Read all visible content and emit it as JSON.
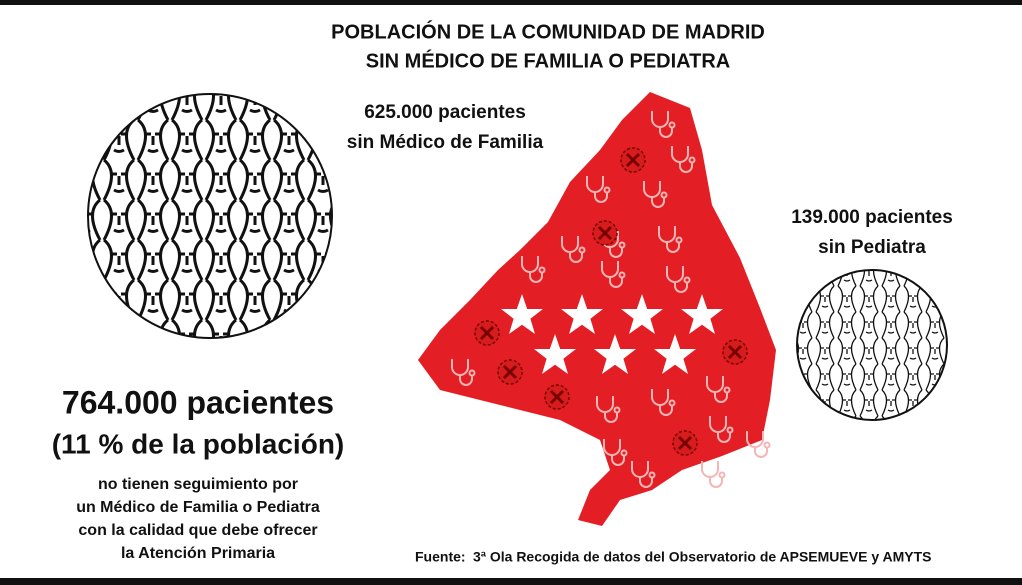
{
  "header": {
    "title_lines": [
      "POBLACIÓN DE LA COMUNIDAD DE MADRID",
      "SIN MÉDICO DE FAMILIA O PEDIATRA"
    ]
  },
  "family_doctor": {
    "count": "625.000 pacientes",
    "label": "sin Médico de Familia"
  },
  "pediatrician": {
    "count": "139.000 pacientes",
    "label": "sin Pediatra"
  },
  "total": {
    "count": "764.000 pacientes",
    "share": "(11 % de la población)",
    "description": [
      "no tienen seguimiento por",
      "un Médico de Familia o Pediatra",
      "con la calidad que debe ofrecer",
      "la Atención Primaria"
    ]
  },
  "source": {
    "label": "Fuente:",
    "text": "3ª Ola Recogida de datos del Observatorio de APSEMUEVE y AMYTS"
  }
}
